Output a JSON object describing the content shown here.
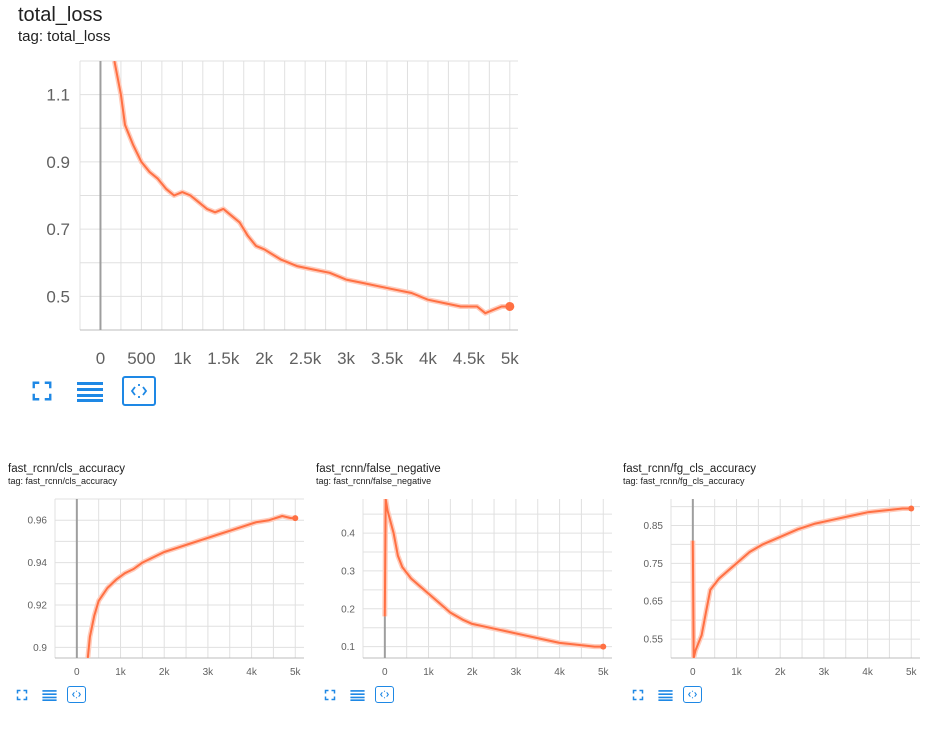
{
  "colors": {
    "series": "#ff7043",
    "series_raw": "#ffccbc",
    "grid": "#e0e0e0",
    "zero_axis": "#9e9e9e",
    "button": "#1e88e5"
  },
  "buttons": [
    {
      "name": "expand-icon"
    },
    {
      "name": "toggle-log-scale-icon"
    },
    {
      "name": "fit-domain-icon"
    }
  ],
  "cards": [
    {
      "title": "total_loss",
      "tag": "tag: total_loss",
      "chart_data": {
        "type": "line",
        "title": "total_loss",
        "xlabel": "",
        "ylabel": "",
        "xlim": [
          -250,
          5100
        ],
        "ylim": [
          0.4,
          1.2
        ],
        "x_ticks": [
          0,
          500,
          1000,
          1500,
          2000,
          2500,
          3000,
          3500,
          4000,
          4500,
          5000
        ],
        "x_tick_labels": [
          "0",
          "500",
          "1k",
          "1.5k",
          "2k",
          "2.5k",
          "3k",
          "3.5k",
          "4k",
          "4.5k",
          "5k"
        ],
        "y_ticks": [
          0.5,
          0.7,
          0.9,
          1.1
        ],
        "y_tick_labels": [
          "0.5",
          "0.7",
          "0.9",
          "1.1"
        ],
        "grid": true,
        "series": [
          {
            "x": [
              170,
              250,
              300,
              400,
              500,
              600,
              700,
              800,
              900,
              1000,
              1100,
              1200,
              1300,
              1400,
              1500,
              1600,
              1700,
              1800,
              1900,
              2000,
              2200,
              2400,
              2600,
              2800,
              3000,
              3200,
              3400,
              3600,
              3800,
              4000,
              4200,
              4400,
              4600,
              4700,
              4800,
              4900,
              5000
            ],
            "y": [
              1.2,
              1.1,
              1.01,
              0.95,
              0.9,
              0.87,
              0.85,
              0.82,
              0.8,
              0.81,
              0.8,
              0.78,
              0.76,
              0.75,
              0.76,
              0.74,
              0.72,
              0.68,
              0.65,
              0.64,
              0.61,
              0.59,
              0.58,
              0.57,
              0.55,
              0.54,
              0.53,
              0.52,
              0.51,
              0.49,
              0.48,
              0.47,
              0.47,
              0.45,
              0.46,
              0.47,
              0.47
            ]
          }
        ]
      }
    },
    {
      "title": "fast_rcnn/cls_accuracy",
      "tag": "tag: fast_rcnn/cls_accuracy",
      "chart_data": {
        "type": "line",
        "title": "fast_rcnn/cls_accuracy",
        "xlabel": "",
        "ylabel": "",
        "xlim": [
          -500,
          5200
        ],
        "ylim": [
          0.895,
          0.97
        ],
        "x_ticks": [
          0,
          1000,
          2000,
          3000,
          4000,
          5000
        ],
        "x_tick_labels": [
          "0",
          "1k",
          "2k",
          "3k",
          "4k",
          "5k"
        ],
        "y_ticks": [
          0.9,
          0.92,
          0.94,
          0.96
        ],
        "y_tick_labels": [
          "0.9",
          "0.92",
          "0.94",
          "0.96"
        ],
        "grid": true,
        "series": [
          {
            "x": [
              250,
              300,
              400,
              500,
              700,
              900,
              1100,
              1300,
              1500,
              1700,
              2000,
              2300,
              2600,
              2900,
              3200,
              3500,
              3800,
              4100,
              4400,
              4700,
              4900,
              5000
            ],
            "y": [
              0.895,
              0.905,
              0.915,
              0.922,
              0.928,
              0.932,
              0.935,
              0.937,
              0.94,
              0.942,
              0.945,
              0.947,
              0.949,
              0.951,
              0.953,
              0.955,
              0.957,
              0.959,
              0.96,
              0.962,
              0.961,
              0.961
            ]
          }
        ]
      }
    },
    {
      "title": "fast_rcnn/false_negative",
      "tag": "tag: fast_rcnn/false_negative",
      "chart_data": {
        "type": "line",
        "title": "fast_rcnn/false_negative",
        "xlabel": "",
        "ylabel": "",
        "xlim": [
          -500,
          5200
        ],
        "ylim": [
          0.07,
          0.49
        ],
        "x_ticks": [
          0,
          1000,
          2000,
          3000,
          4000,
          5000
        ],
        "x_tick_labels": [
          "0",
          "1k",
          "2k",
          "3k",
          "4k",
          "5k"
        ],
        "y_ticks": [
          0.1,
          0.2,
          0.3,
          0.4
        ],
        "y_tick_labels": [
          "0.1",
          "0.2",
          "0.3",
          "0.4"
        ],
        "grid": true,
        "series": [
          {
            "x": [
              0,
              20,
              60,
              200,
              300,
              400,
              600,
              800,
              1000,
              1200,
              1500,
              1800,
              2000,
              2400,
              2800,
              3200,
              3600,
              4000,
              4400,
              4800,
              5000
            ],
            "y": [
              0.18,
              0.49,
              0.46,
              0.4,
              0.34,
              0.31,
              0.28,
              0.26,
              0.24,
              0.22,
              0.19,
              0.17,
              0.16,
              0.15,
              0.14,
              0.13,
              0.12,
              0.11,
              0.105,
              0.1,
              0.1
            ]
          }
        ]
      }
    },
    {
      "title": "fast_rcnn/fg_cls_accuracy",
      "tag": "tag: fast_rcnn/fg_cls_accuracy",
      "chart_data": {
        "type": "line",
        "title": "fast_rcnn/fg_cls_accuracy",
        "xlabel": "",
        "ylabel": "",
        "xlim": [
          -500,
          5200
        ],
        "ylim": [
          0.5,
          0.92
        ],
        "x_ticks": [
          0,
          1000,
          2000,
          3000,
          4000,
          5000
        ],
        "x_tick_labels": [
          "0",
          "1k",
          "2k",
          "3k",
          "4k",
          "5k"
        ],
        "y_ticks": [
          0.55,
          0.65,
          0.75,
          0.85
        ],
        "y_tick_labels": [
          "0.55",
          "0.65",
          "0.75",
          "0.85"
        ],
        "grid": true,
        "series": [
          {
            "x": [
              0,
              20,
              60,
              200,
              300,
              400,
              600,
              800,
              1000,
              1300,
              1600,
              2000,
              2400,
              2800,
              3200,
              3600,
              4000,
              4400,
              4800,
              5000
            ],
            "y": [
              0.81,
              0.5,
              0.52,
              0.56,
              0.62,
              0.68,
              0.71,
              0.73,
              0.75,
              0.78,
              0.8,
              0.82,
              0.84,
              0.855,
              0.865,
              0.875,
              0.885,
              0.89,
              0.895,
              0.895
            ]
          }
        ]
      }
    }
  ]
}
